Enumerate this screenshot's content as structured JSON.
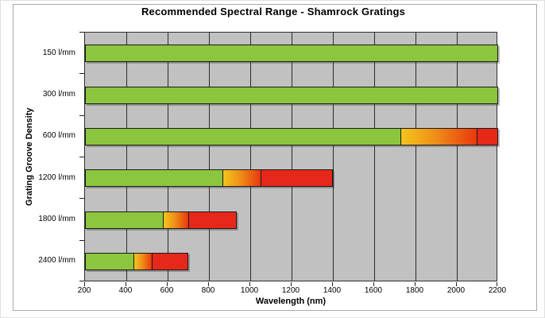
{
  "chart_data": {
    "type": "bar",
    "orientation": "horizontal",
    "title": "Recommended Spectral Range - Shamrock Gratings",
    "xlabel": "Wavelength  (nm)",
    "ylabel": "Grating Groove Density",
    "xlim": [
      200,
      2200
    ],
    "x_ticks": [
      200,
      400,
      600,
      800,
      1000,
      1200,
      1400,
      1600,
      1800,
      2000,
      2200
    ],
    "grid": true,
    "legend": "none",
    "plot_background": "#c1c1c1",
    "colors": {
      "green": "#8cc63e",
      "gradient_start": "#f3c51c",
      "gradient_mid": "#ef8f18",
      "gradient_end": "#e8380e",
      "red": "#e6281a",
      "bar_border": "#1a1a1a"
    },
    "rows": [
      {
        "label": "150 l/mm",
        "segments": [
          {
            "kind": "green",
            "from": 200,
            "to": 2200
          }
        ]
      },
      {
        "label": "300 l/mm",
        "segments": [
          {
            "kind": "green",
            "from": 200,
            "to": 2200
          }
        ]
      },
      {
        "label": "600 l/mm",
        "segments": [
          {
            "kind": "green",
            "from": 200,
            "to": 1730
          },
          {
            "kind": "gradient",
            "from": 1730,
            "to": 2100
          },
          {
            "kind": "red",
            "from": 2100,
            "to": 2200
          }
        ]
      },
      {
        "label": "1200 l/mm",
        "segments": [
          {
            "kind": "green",
            "from": 200,
            "to": 865
          },
          {
            "kind": "gradient",
            "from": 865,
            "to": 1050
          },
          {
            "kind": "red",
            "from": 1050,
            "to": 1400
          }
        ]
      },
      {
        "label": "1800 l/mm",
        "segments": [
          {
            "kind": "green",
            "from": 200,
            "to": 577
          },
          {
            "kind": "gradient",
            "from": 577,
            "to": 700
          },
          {
            "kind": "red",
            "from": 700,
            "to": 933
          }
        ]
      },
      {
        "label": "2400 l/mm",
        "segments": [
          {
            "kind": "green",
            "from": 200,
            "to": 433
          },
          {
            "kind": "gradient",
            "from": 433,
            "to": 525
          },
          {
            "kind": "red",
            "from": 525,
            "to": 700
          }
        ]
      }
    ]
  }
}
